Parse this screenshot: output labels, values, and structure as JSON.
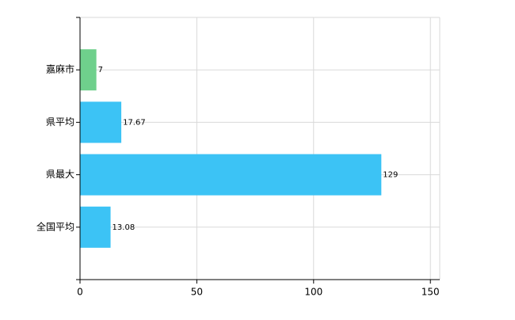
{
  "chart_data": {
    "type": "bar",
    "orientation": "horizontal",
    "categories": [
      "嘉麻市",
      "県平均",
      "県最大",
      "全国平均"
    ],
    "values": [
      7,
      17.67,
      129,
      13.08
    ],
    "colors": [
      "#6fd08c",
      "#3cc3f5",
      "#3cc3f5",
      "#3cc3f5"
    ],
    "xlim": [
      0,
      154
    ],
    "xticks": [
      0,
      50,
      100,
      150
    ],
    "grid": true
  }
}
